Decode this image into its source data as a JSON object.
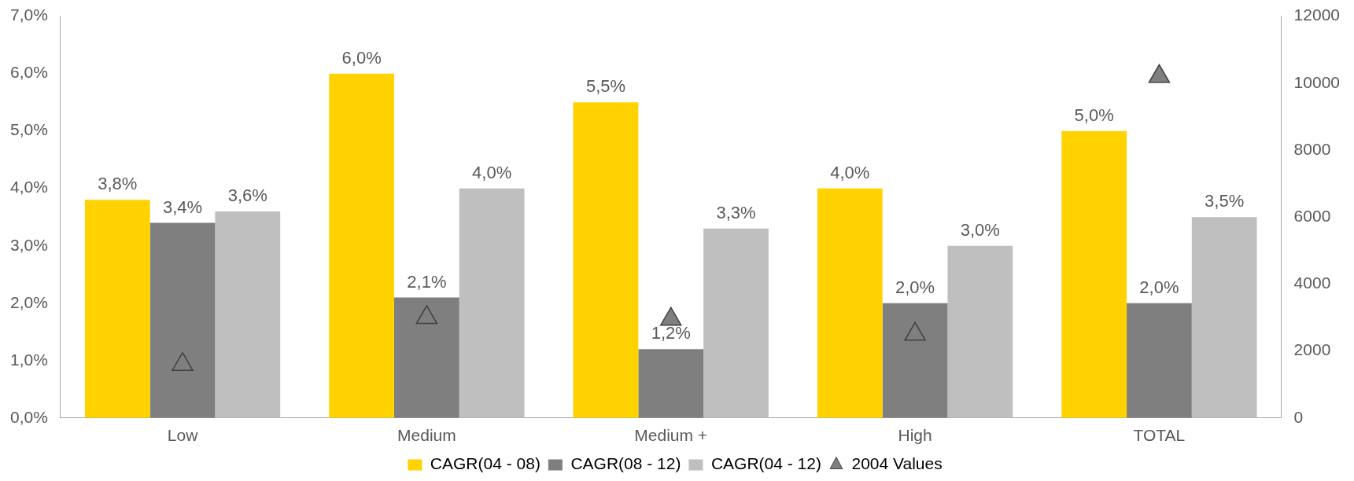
{
  "chart_data": {
    "type": "bar",
    "categories": [
      "Low",
      "Medium",
      "Medium +",
      "High",
      "TOTAL"
    ],
    "series": [
      {
        "name": "CAGR(04 - 08)",
        "color": "#ffd200",
        "values": [
          3.8,
          6.0,
          5.5,
          4.0,
          5.0
        ],
        "value_labels": [
          "3,8%",
          "6,0%",
          "5,5%",
          "4,0%",
          "5,0%"
        ]
      },
      {
        "name": "CAGR(08 - 12)",
        "color": "#7f7f7f",
        "values": [
          3.4,
          2.1,
          1.2,
          2.0,
          2.0
        ],
        "value_labels": [
          "3,4%",
          "2,1%",
          "1,2%",
          "2,0%",
          "2,0%"
        ]
      },
      {
        "name": "CAGR(04 - 12)",
        "color": "#bfbfbf",
        "values": [
          3.6,
          4.0,
          3.3,
          3.0,
          3.5
        ],
        "value_labels": [
          "3,6%",
          "4,0%",
          "3,3%",
          "3,0%",
          "3,5%"
        ]
      },
      {
        "name": "2004 Values",
        "type": "scatter",
        "axis": "y2",
        "marker": "triangle",
        "color": "#7f7f7f",
        "values": [
          1600,
          3000,
          2950,
          2500,
          10200
        ]
      }
    ],
    "ylim": [
      0,
      7
    ],
    "yticks": [
      {
        "value": 0,
        "label": "0,0%"
      },
      {
        "value": 1,
        "label": "1,0%"
      },
      {
        "value": 2,
        "label": "2,0%"
      },
      {
        "value": 3,
        "label": "3,0%"
      },
      {
        "value": 4,
        "label": "4,0%"
      },
      {
        "value": 5,
        "label": "5,0%"
      },
      {
        "value": 6,
        "label": "6,0%"
      },
      {
        "value": 7,
        "label": "7,0%"
      }
    ],
    "y2lim": [
      0,
      12000
    ],
    "y2ticks": [
      0,
      2000,
      4000,
      6000,
      8000,
      10000,
      12000
    ],
    "legend": "bottom",
    "grid": false
  }
}
